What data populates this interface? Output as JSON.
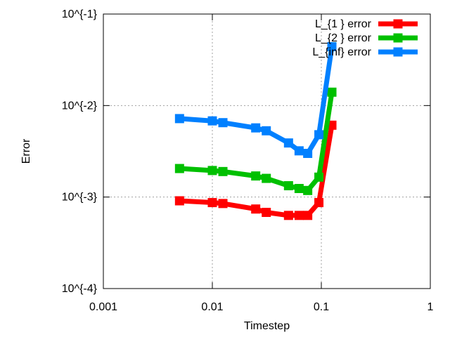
{
  "chart_data": {
    "type": "line",
    "xscale": "log",
    "yscale": "log",
    "xlim": [
      0.001,
      1
    ],
    "ylim": [
      0.0001,
      0.1
    ],
    "grid": true,
    "legend_position": "top-right",
    "xlabel": "Timestep",
    "ylabel": "Error",
    "x_ticks": [
      {
        "value": 0.001,
        "label": "0.001"
      },
      {
        "value": 0.01,
        "label": "0.01"
      },
      {
        "value": 0.1,
        "label": "0.1"
      },
      {
        "value": 1,
        "label": "1"
      }
    ],
    "y_ticks": [
      {
        "value": 0.0001,
        "label": "10^{-4}"
      },
      {
        "value": 0.001,
        "label": "10^{-3}"
      },
      {
        "value": 0.01,
        "label": "10^{-2}"
      },
      {
        "value": 0.1,
        "label": "10^{-1}"
      }
    ],
    "x": [
      0.005,
      0.01,
      0.0125,
      0.025,
      0.03125,
      0.05,
      0.0625,
      0.075,
      0.095,
      0.125
    ],
    "series": [
      {
        "name": "L_{1 } error",
        "color": "#ff0000",
        "values": [
          0.00091,
          0.00087,
          0.00085,
          0.00074,
          0.00068,
          0.00063,
          0.00063,
          0.00063,
          0.00087,
          0.0061
        ]
      },
      {
        "name": "L_{2 } error",
        "color": "#00c000",
        "values": [
          0.00205,
          0.00195,
          0.0019,
          0.0017,
          0.0016,
          0.00133,
          0.00124,
          0.00118,
          0.00165,
          0.014
        ]
      },
      {
        "name": "L_{inf} error",
        "color": "#0080ff",
        "values": [
          0.0072,
          0.0068,
          0.0065,
          0.0057,
          0.0053,
          0.0039,
          0.0032,
          0.003,
          0.0048,
          0.044
        ]
      }
    ]
  }
}
